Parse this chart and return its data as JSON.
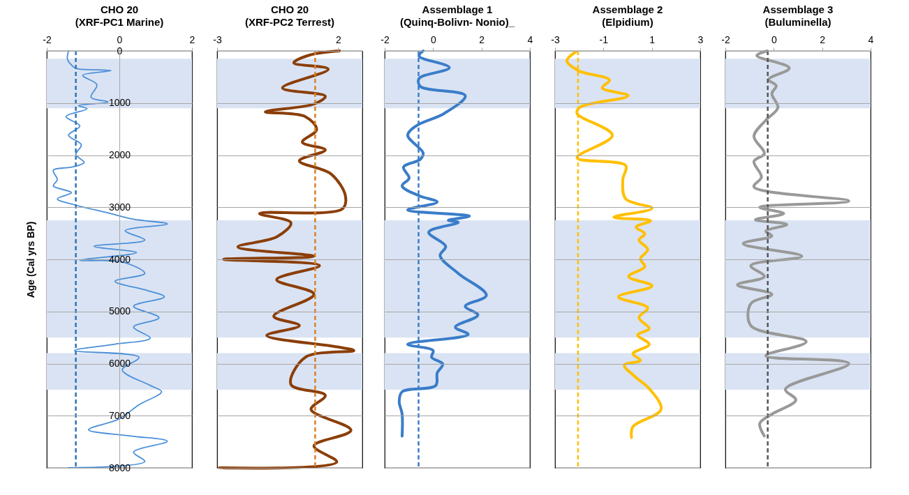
{
  "chart_data": [
    {
      "type": "line",
      "title": "CHO 20",
      "subtitle": "(XRF-PC1 Marine)",
      "ylabel": "Age (Cal yrs BP)",
      "xlim": [
        -2,
        2
      ],
      "xticks": [
        -2,
        0,
        2
      ],
      "ylim": [
        8000,
        0
      ],
      "yticks": [
        0,
        1000,
        2000,
        3000,
        4000,
        5000,
        6000,
        7000,
        8000
      ],
      "grid": "y",
      "series": [
        {
          "color": "#4a8fd9",
          "x": [
            -1.4,
            -1.43,
            -1.24,
            -1.09,
            -0.23,
            -1.01,
            -0.62,
            -0.78,
            -0.31,
            -1.12,
            -0.89,
            -1.47,
            -1.09,
            -1.4,
            -1.05,
            -1.2,
            -0.97,
            -1.32,
            -1.82,
            -1.71,
            -1.82,
            -1.32,
            -1.71,
            -1.2,
            -0.31,
            0.39,
            1.32,
            0.16,
            0.7,
            -0.7,
            0.47,
            -1.09,
            0.08,
            0.7,
            -0.12,
            0.78,
            1.24,
            0.39,
            1.09,
            0.39,
            0.85,
            -0.14,
            -1.24,
            0.54,
            0.08,
            0.85,
            1.16,
            0.54,
            0.0,
            -0.85,
            0.31,
            1.32,
            0.39,
            0.7,
            -1.4
          ],
          "values": [
            0,
            160,
            320,
            350,
            380,
            470,
            650,
            890,
            980,
            1050,
            1110,
            1260,
            1440,
            1620,
            1800,
            1990,
            2140,
            2230,
            2290,
            2470,
            2590,
            2720,
            2840,
            2960,
            3110,
            3230,
            3320,
            3450,
            3630,
            3750,
            3870,
            4020,
            4050,
            4270,
            4420,
            4600,
            4720,
            4900,
            5120,
            5300,
            5510,
            5630,
            5750,
            5880,
            6120,
            6420,
            6540,
            6790,
            7060,
            7270,
            7390,
            7490,
            7700,
            7880,
            8000
          ]
        }
      ],
      "ref_lines": [
        {
          "axis": "x",
          "value": -1.2,
          "color": "#2e75b6",
          "line_style": "dashed"
        }
      ],
      "bands": [
        {
          "axis": "y",
          "from": 150,
          "to": 1100,
          "color": "#dae3f3"
        },
        {
          "axis": "y",
          "from": 3250,
          "to": 5500,
          "color": "#dae3f3"
        },
        {
          "axis": "y",
          "from": 5800,
          "to": 6500,
          "color": "#dae3f3"
        }
      ]
    },
    {
      "type": "line",
      "title": "CHO 20",
      "subtitle": "(XRF-PC2 Terrest)",
      "xlim": [
        -3,
        3
      ],
      "xticks": [
        -3,
        2
      ],
      "ylim": [
        8000,
        0
      ],
      "yticks": [
        0,
        1000,
        2000,
        3000,
        4000,
        5000,
        6000,
        7000,
        8000
      ],
      "grid": "y",
      "tick_labels": "x",
      "series": [
        {
          "color": "#8b3e08",
          "x": [
            2.06,
            0.82,
            0.17,
            1.59,
            -0.3,
            1.47,
            1.0,
            -1.01,
            0.64,
            1.11,
            0.52,
            1.47,
            0.4,
            1.7,
            2.3,
            2.18,
            -1.25,
            0.05,
            -0.54,
            -2.14,
            1.0,
            -2.73,
            1.23,
            -0.54,
            1.0,
            -0.66,
            0.4,
            -0.95,
            1.82,
            2.65,
            0.64,
            0.05,
            1.47,
            0.88,
            2.53,
            1.0,
            1.94,
            -2.91
          ],
          "values": [
            0,
            80,
            230,
            350,
            710,
            870,
            1020,
            1170,
            1260,
            1510,
            1750,
            1900,
            2110,
            2360,
            2780,
            3030,
            3120,
            3300,
            3570,
            3760,
            3940,
            4000,
            4120,
            4390,
            4670,
            5090,
            5270,
            5460,
            5670,
            5750,
            5880,
            6400,
            6610,
            6880,
            7280,
            7580,
            7890,
            8000
          ]
        }
      ],
      "ref_lines": [
        {
          "axis": "x",
          "value": 1.05,
          "color": "#d9822b",
          "line_style": "dashed"
        }
      ],
      "bands": [
        {
          "axis": "y",
          "from": 150,
          "to": 1100,
          "color": "#dae3f3"
        },
        {
          "axis": "y",
          "from": 3250,
          "to": 5500,
          "color": "#dae3f3"
        },
        {
          "axis": "y",
          "from": 5800,
          "to": 6500,
          "color": "#dae3f3"
        }
      ]
    },
    {
      "type": "line",
      "title": "Assemblage 1",
      "subtitle": "(Quinq-Bolivn- Nonio)_",
      "xlim": [
        -2,
        4
      ],
      "xticks": [
        -2,
        0,
        2,
        4
      ],
      "ylim": [
        8000,
        0
      ],
      "yticks": [
        0,
        1000,
        2000,
        3000,
        4000,
        5000,
        6000,
        7000,
        8000
      ],
      "grid": "y",
      "tick_labels": "x",
      "series": [
        {
          "color": "#3a7dc9",
          "x": [
            -0.41,
            -0.58,
            0.67,
            -0.58,
            -0.53,
            1.33,
            0.46,
            -0.7,
            -1.05,
            -0.41,
            -0.53,
            -1.22,
            -0.99,
            -1.28,
            -0.58,
            0.17,
            -1.05,
            1.5,
            0.63,
            1.04,
            -0.18,
            0.52,
            0.29,
            1.04,
            2.2,
            1.33,
            1.85,
            0.92,
            1.45,
            -1.05,
            0.0,
            -0.06,
            0.4,
            0.17,
            0.11,
            -1.28,
            -1.4,
            -1.28,
            -1.28
          ],
          "values": [
            0,
            100,
            320,
            530,
            680,
            860,
            1200,
            1440,
            1620,
            1960,
            2080,
            2230,
            2440,
            2590,
            2780,
            2900,
            3050,
            3170,
            3250,
            3290,
            3480,
            3750,
            3930,
            4270,
            4690,
            4900,
            5070,
            5300,
            5440,
            5630,
            5750,
            5880,
            6010,
            6180,
            6420,
            6540,
            6730,
            6970,
            7390
          ]
        }
      ],
      "ref_lines": [
        {
          "axis": "x",
          "value": -0.6,
          "color": "#3a7dc9",
          "line_style": "dashed"
        }
      ],
      "bands": [
        {
          "axis": "y",
          "from": 150,
          "to": 1100,
          "color": "#dae3f3"
        },
        {
          "axis": "y",
          "from": 3250,
          "to": 5500,
          "color": "#dae3f3"
        },
        {
          "axis": "y",
          "from": 5800,
          "to": 6500,
          "color": "#dae3f3"
        }
      ]
    },
    {
      "type": "line",
      "title": "Assemblage 2",
      "subtitle": "(Elpidium)",
      "xlim": [
        -3,
        3
      ],
      "xticks": [
        -3,
        -1,
        1,
        3
      ],
      "ylim": [
        8000,
        0
      ],
      "yticks": [
        0,
        1000,
        2000,
        3000,
        4000,
        5000,
        6000,
        7000,
        8000
      ],
      "grid": "y",
      "tick_labels": "x",
      "series": [
        {
          "color": "#ffc000",
          "x": [
            -2.15,
            -2.51,
            -2.03,
            -0.75,
            -1.05,
            0.02,
            -1.97,
            -2.09,
            -0.63,
            -2.09,
            -0.08,
            -0.2,
            -0.08,
            1.01,
            -0.57,
            0.95,
            0.35,
            0.71,
            0.47,
            0.83,
            0.53,
            0.71,
            0.04,
            1.01,
            -0.38,
            0.83,
            0.47,
            0.89,
            0.41,
            0.89,
            0.22,
            0.53,
            -0.14,
            0.28,
            0.89,
            1.38,
            0.22,
            0.16
          ],
          "values": [
            20,
            190,
            380,
            560,
            710,
            860,
            1080,
            1200,
            1620,
            2050,
            2200,
            2470,
            2840,
            3020,
            3190,
            3260,
            3380,
            3510,
            3630,
            3810,
            3990,
            4140,
            4330,
            4510,
            4720,
            4930,
            5120,
            5330,
            5450,
            5630,
            5810,
            5940,
            6030,
            6240,
            6480,
            6880,
            7210,
            7420
          ]
        }
      ],
      "ref_lines": [
        {
          "axis": "x",
          "value": -2.05,
          "color": "#ffc000",
          "line_style": "dashed"
        }
      ],
      "bands": [
        {
          "axis": "y",
          "from": 150,
          "to": 1100,
          "color": "#dae3f3"
        },
        {
          "axis": "y",
          "from": 3250,
          "to": 5500,
          "color": "#dae3f3"
        },
        {
          "axis": "y",
          "from": 5800,
          "to": 6500,
          "color": "#dae3f3"
        }
      ]
    },
    {
      "type": "line",
      "title": "Assemblage 3",
      "subtitle": "(Buluminella)",
      "xlim": [
        -2,
        4
      ],
      "xticks": [
        -2,
        0,
        2,
        4
      ],
      "ylim": [
        8000,
        0
      ],
      "yticks": [
        0,
        1000,
        2000,
        3000,
        4000,
        5000,
        6000,
        7000,
        8000
      ],
      "grid": "y",
      "tick_labels": "x",
      "series": [
        {
          "color": "#999999",
          "x": [
            -0.27,
            -0.7,
            0.64,
            -0.21,
            0.1,
            -0.08,
            0.17,
            -0.33,
            -0.82,
            -0.39,
            -0.82,
            -0.51,
            -0.82,
            3.1,
            -0.58,
            0.41,
            -0.76,
            0.54,
            -0.33,
            -0.08,
            -1.26,
            1.16,
            -0.95,
            -0.39,
            -1.5,
            -0.08,
            -0.95,
            -0.95,
            1.34,
            -0.33,
            3.1,
            0.48,
            0.91,
            -0.08,
            -0.58,
            -0.39
          ],
          "values": [
            0,
            90,
            330,
            550,
            670,
            820,
            1090,
            1330,
            1640,
            1970,
            2120,
            2420,
            2610,
            2880,
            3000,
            3120,
            3240,
            3330,
            3460,
            3550,
            3700,
            3940,
            4120,
            4330,
            4490,
            4670,
            4850,
            5270,
            5580,
            5850,
            6000,
            6490,
            6700,
            6970,
            7150,
            7390
          ]
        }
      ],
      "ref_lines": [
        {
          "axis": "x",
          "value": -0.25,
          "color": "#555555",
          "line_style": "dashed"
        }
      ],
      "bands": [
        {
          "axis": "y",
          "from": 150,
          "to": 1100,
          "color": "#dae3f3"
        },
        {
          "axis": "y",
          "from": 3250,
          "to": 5500,
          "color": "#dae3f3"
        },
        {
          "axis": "y",
          "from": 5800,
          "to": 6500,
          "color": "#dae3f3"
        }
      ]
    }
  ]
}
